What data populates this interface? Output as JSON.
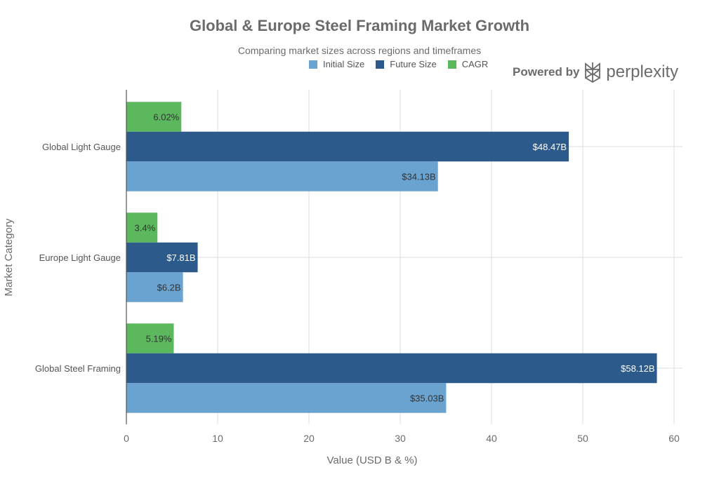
{
  "chart_data": {
    "type": "bar",
    "orientation": "horizontal",
    "title": "Global & Europe Steel Framing Market Growth",
    "subtitle": "Comparing market sizes across regions and timeframes",
    "xlabel": "Value (USD B & %)",
    "ylabel": "Market Category",
    "xlim": [
      0,
      60
    ],
    "xticks": [
      0,
      10,
      20,
      30,
      40,
      50,
      60
    ],
    "grid": true,
    "legend_position": "top",
    "categories": [
      "Global Light Gauge",
      "Europe Light Gauge",
      "Global Steel Framing"
    ],
    "series": [
      {
        "name": "Initial Size",
        "color": "#6aa2d0",
        "values": [
          34.13,
          6.2,
          35.03
        ],
        "labels": [
          "$34.13B",
          "$6.2B",
          "$35.03B"
        ]
      },
      {
        "name": "Future Size",
        "color": "#2c5a8a",
        "values": [
          48.47,
          7.81,
          58.12
        ],
        "labels": [
          "$48.47B",
          "$7.81B",
          "$58.12B"
        ]
      },
      {
        "name": "CAGR",
        "color": "#5cb85c",
        "values": [
          6.02,
          3.4,
          5.19
        ],
        "labels": [
          "6.02%",
          "3.4%",
          "5.19%"
        ]
      }
    ]
  },
  "branding": {
    "powered_by": "Powered by",
    "brand": "perplexity"
  }
}
